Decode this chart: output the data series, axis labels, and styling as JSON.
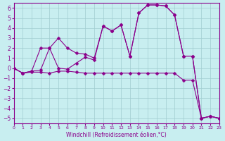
{
  "xlabel": "Windchill (Refroidissement éolien,°C)",
  "background_color": "#c8eef0",
  "grid_color": "#a0ccd0",
  "line_color": "#8b008b",
  "xlim": [
    0,
    23
  ],
  "ylim": [
    -5.5,
    6.5
  ],
  "xticks": [
    0,
    1,
    2,
    3,
    4,
    5,
    6,
    7,
    8,
    9,
    10,
    11,
    12,
    13,
    14,
    15,
    16,
    17,
    18,
    19,
    20,
    21,
    22,
    23
  ],
  "yticks": [
    -5,
    -4,
    -3,
    -2,
    -1,
    0,
    1,
    2,
    3,
    4,
    5,
    6
  ],
  "series1_x": [
    0,
    1,
    2,
    3,
    4,
    5,
    6,
    7,
    8,
    9,
    10,
    11,
    12,
    13,
    14,
    15,
    16,
    17,
    18,
    19,
    20,
    21,
    22,
    23
  ],
  "series1_y": [
    0,
    -0.5,
    -0.4,
    -0.4,
    -0.5,
    -0.3,
    -0.3,
    -0.4,
    -0.5,
    -0.5,
    -0.5,
    -0.5,
    -0.5,
    -0.5,
    -0.5,
    -0.5,
    -0.5,
    -0.5,
    -0.5,
    -1.2,
    -1.2,
    -5.0,
    -4.8,
    -5.0
  ],
  "series2_x": [
    0,
    1,
    2,
    3,
    4,
    5,
    6,
    7,
    8,
    9,
    10,
    11,
    12,
    13,
    14,
    15,
    16,
    17,
    18,
    19,
    20,
    21,
    22,
    23
  ],
  "series2_y": [
    0,
    -0.5,
    -0.3,
    -0.2,
    2.0,
    3.0,
    2.0,
    1.5,
    1.4,
    1.0,
    4.2,
    3.7,
    4.3,
    1.2,
    5.5,
    6.3,
    6.3,
    6.2,
    5.3,
    1.2,
    1.2,
    -5.0,
    -4.8,
    -5.0
  ],
  "series3_x": [
    0,
    1,
    2,
    3,
    4,
    5,
    6,
    7,
    8,
    9,
    10,
    11,
    12,
    13,
    14,
    15,
    16,
    17,
    18,
    19,
    20,
    21,
    22,
    23
  ],
  "series3_y": [
    0,
    -0.5,
    -0.3,
    2.0,
    2.0,
    0.0,
    -0.1,
    0.5,
    1.1,
    0.8,
    4.2,
    3.7,
    4.3,
    1.2,
    5.5,
    6.3,
    6.3,
    6.2,
    5.3,
    1.2,
    1.2,
    -5.0,
    -4.8,
    -5.0
  ]
}
